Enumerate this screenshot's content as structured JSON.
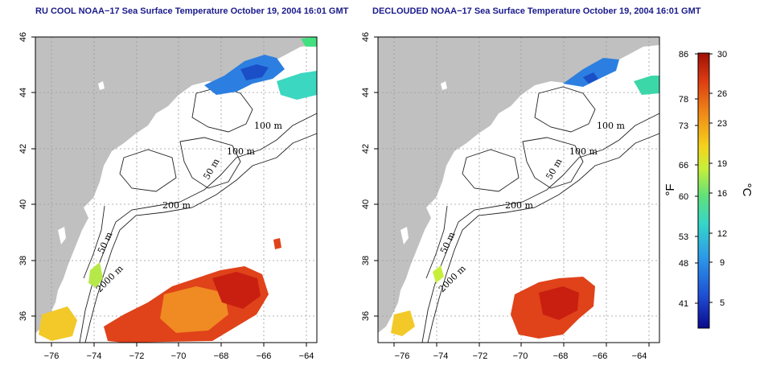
{
  "maps": [
    {
      "title": "RU COOL NOAA−17 Sea Surface Temperature October 19, 2004 16:01 GMT",
      "x_ticks": [
        "−76",
        "−74",
        "−72",
        "−70",
        "−68",
        "−66",
        "−64"
      ],
      "y_ticks": [
        "36",
        "38",
        "40",
        "42",
        "44",
        "46"
      ],
      "contours": [
        "100 m",
        "100 m",
        "50 m",
        "200 m",
        "50 m",
        "2000 m"
      ]
    },
    {
      "title": "DECLOUDED NOAA−17 Sea Surface Temperature October 19, 2004 16:01 GMT",
      "x_ticks": [
        "−76",
        "−74",
        "−72",
        "−70",
        "−68",
        "−66",
        "−64"
      ],
      "y_ticks": [
        "36",
        "38",
        "40",
        "42",
        "44",
        "46"
      ],
      "contours": [
        "100 m",
        "100 m",
        "50 m",
        "200 m",
        "50 m",
        "2000 m"
      ]
    }
  ],
  "colorbar": {
    "f_ticks": [
      "86",
      "78",
      "73",
      "66",
      "60",
      "53",
      "48",
      "41"
    ],
    "c_ticks": [
      "30",
      "26",
      "23",
      "19",
      "16",
      "12",
      "9",
      "5"
    ],
    "f_unit": "°F",
    "c_unit": "°C",
    "colors": [
      "#0a0a8c",
      "#1f4fd6",
      "#2c9be8",
      "#35d6c8",
      "#5fe07a",
      "#c7ef3a",
      "#f4d31c",
      "#f08a17",
      "#dc3b12",
      "#a01006"
    ]
  }
}
